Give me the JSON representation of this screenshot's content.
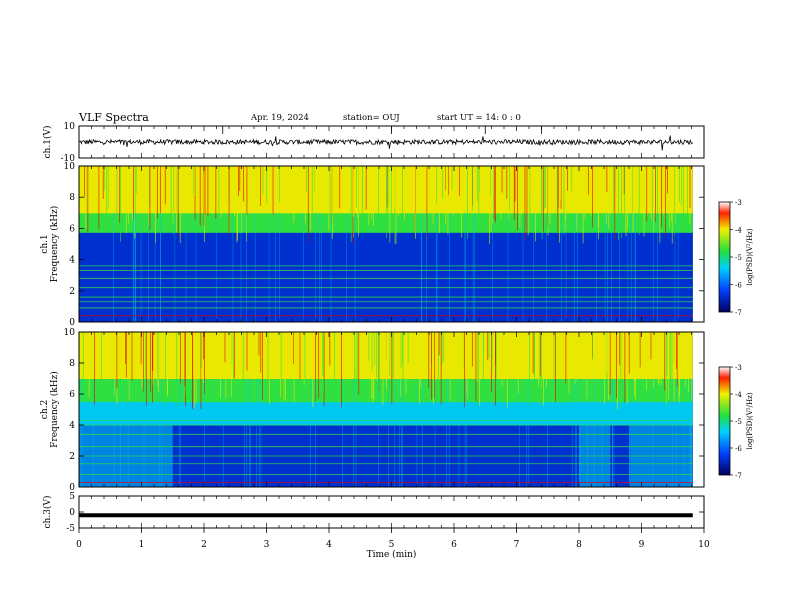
{
  "header": {
    "title": "VLF Spectra",
    "date": "Apr. 19, 2024",
    "station": "station= OUJ",
    "start": "start  UT =   14: 0  : 0"
  },
  "chart_data": [
    {
      "type": "line",
      "name": "ch1-waveform",
      "ylabel": "ch.1(V)",
      "ylim": [
        -10,
        10
      ],
      "yticks": [
        "10",
        "-10"
      ],
      "x": [
        0,
        1,
        2,
        3,
        4,
        5,
        6,
        7,
        8,
        9,
        9.82
      ],
      "y": [
        0,
        0,
        0,
        0,
        0,
        0,
        0,
        0,
        0,
        0,
        0
      ]
    },
    {
      "type": "heatmap",
      "name": "ch1-spectrogram",
      "ylabel": "ch.1\nFrequency (kHz)",
      "ylabel_lines": [
        "ch.1",
        "Frequency (kHz)"
      ],
      "ylim": [
        0,
        10
      ],
      "yticks": [
        "0",
        "2",
        "4",
        "6",
        "8",
        "10"
      ],
      "xlim": [
        0,
        10
      ],
      "colorbar": {
        "label": "log(PSD)(V²/Hz)",
        "ticks": [
          "-3",
          "-4",
          "-5",
          "-6",
          "-7"
        ],
        "range": [
          -7,
          -3
        ]
      }
    },
    {
      "type": "heatmap",
      "name": "ch2-spectrogram",
      "ylabel": "ch.2\nFrequency (kHz)",
      "ylabel_lines": [
        "ch.2",
        "Frequency (kHz)"
      ],
      "ylim": [
        0,
        10
      ],
      "yticks": [
        "0",
        "2",
        "4",
        "6",
        "8",
        "10"
      ],
      "xlim": [
        0,
        10
      ],
      "colorbar": {
        "label": "log(PSD)(V²/Hz)",
        "ticks": [
          "-3",
          "-4",
          "-5",
          "-6",
          "-7"
        ],
        "range": [
          -7,
          -3
        ]
      }
    },
    {
      "type": "line",
      "name": "ch3-waveform",
      "ylabel": "ch.3(V)",
      "ylim": [
        -5,
        5
      ],
      "yticks": [
        "5",
        "0",
        "-5"
      ],
      "x": [
        0,
        9.82
      ],
      "y": [
        -1,
        -1
      ]
    }
  ],
  "xaxis": {
    "label": "Time  (min)",
    "ticks": [
      "0",
      "1",
      "2",
      "3",
      "4",
      "5",
      "6",
      "7",
      "8",
      "9",
      "10"
    ],
    "range": [
      0,
      10
    ]
  },
  "colors": {
    "deep": "#00007a",
    "blue": "#0030d0",
    "cyan": "#00c8f0",
    "green": "#30e040",
    "yellow": "#e8e800",
    "red": "#e00000"
  }
}
